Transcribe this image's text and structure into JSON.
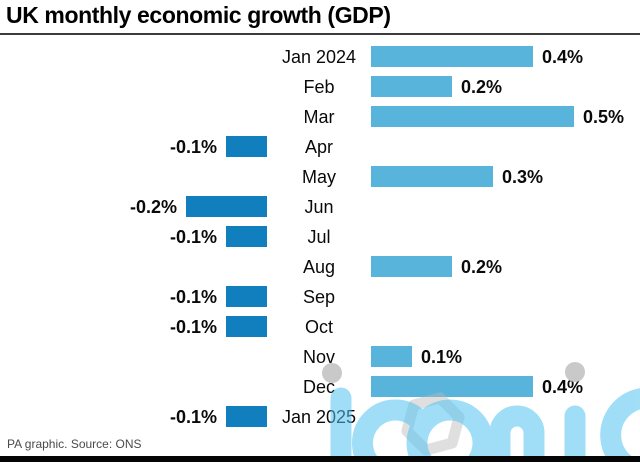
{
  "header": {
    "title": "UK monthly economic growth (GDP)"
  },
  "footer": {
    "source": "PA graphic. Source: ONS"
  },
  "watermark": {
    "text": "iconic"
  },
  "colors": {
    "positive_bar": "#58b4da",
    "negative_bar": "#117fbe",
    "watermark_blue": "#53c4f1",
    "watermark_grey": "#c6c6c6",
    "text": "#0a0a0a"
  },
  "chart_data": {
    "type": "bar",
    "orientation": "horizontal",
    "title": "UK monthly economic growth (GDP)",
    "unit": "%",
    "categories": [
      "Jan 2024",
      "Feb",
      "Mar",
      "Apr",
      "May",
      "Jun",
      "Jul",
      "Aug",
      "Sep",
      "Oct",
      "Nov",
      "Dec",
      "Jan 2025"
    ],
    "values": [
      0.4,
      0.2,
      0.5,
      -0.1,
      0.3,
      -0.2,
      -0.1,
      0.2,
      -0.1,
      -0.1,
      0.1,
      0.4,
      -0.1
    ],
    "value_labels": [
      "0.4%",
      "0.2%",
      "0.5%",
      "-0.1%",
      "0.3%",
      "-0.2%",
      "-0.1%",
      "0.2%",
      "-0.1%",
      "-0.1%",
      "0.1%",
      "0.4%",
      "-0.1%"
    ],
    "xlim": [
      -0.25,
      0.55
    ],
    "grid": false,
    "legend": false,
    "source": "ONS"
  }
}
